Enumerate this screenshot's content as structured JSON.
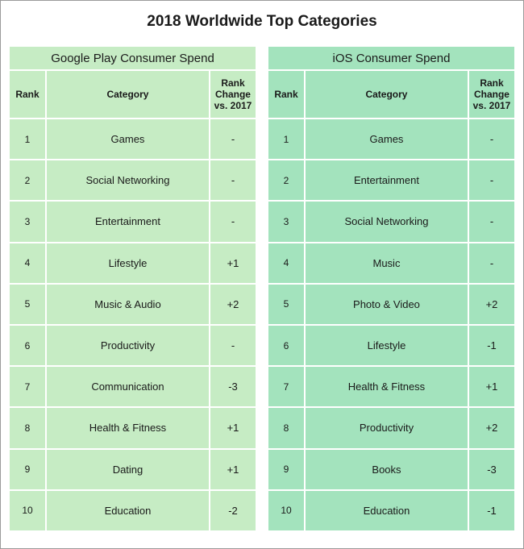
{
  "title": "2018 Worldwide Top Categories",
  "chart_data": {
    "type": "table",
    "columns": [
      "Rank",
      "Category",
      "Rank Change vs. 2017"
    ],
    "tables": [
      {
        "name": "Google Play Consumer Spend",
        "rows": [
          {
            "rank": "1",
            "category": "Games",
            "change": "-"
          },
          {
            "rank": "2",
            "category": "Social Networking",
            "change": "-"
          },
          {
            "rank": "3",
            "category": "Entertainment",
            "change": "-"
          },
          {
            "rank": "4",
            "category": "Lifestyle",
            "change": "+1"
          },
          {
            "rank": "5",
            "category": "Music & Audio",
            "change": "+2"
          },
          {
            "rank": "6",
            "category": "Productivity",
            "change": "-"
          },
          {
            "rank": "7",
            "category": "Communication",
            "change": "-3"
          },
          {
            "rank": "8",
            "category": "Health & Fitness",
            "change": "+1"
          },
          {
            "rank": "9",
            "category": "Dating",
            "change": "+1"
          },
          {
            "rank": "10",
            "category": "Education",
            "change": "-2"
          }
        ]
      },
      {
        "name": "iOS Consumer Spend",
        "rows": [
          {
            "rank": "1",
            "category": "Games",
            "change": "-"
          },
          {
            "rank": "2",
            "category": "Entertainment",
            "change": "-"
          },
          {
            "rank": "3",
            "category": "Social Networking",
            "change": "-"
          },
          {
            "rank": "4",
            "category": "Music",
            "change": "-"
          },
          {
            "rank": "5",
            "category": "Photo & Video",
            "change": "+2"
          },
          {
            "rank": "6",
            "category": "Lifestyle",
            "change": "-1"
          },
          {
            "rank": "7",
            "category": "Health & Fitness",
            "change": "+1"
          },
          {
            "rank": "8",
            "category": "Productivity",
            "change": "+2"
          },
          {
            "rank": "9",
            "category": "Books",
            "change": "-3"
          },
          {
            "rank": "10",
            "category": "Education",
            "change": "-1"
          }
        ]
      }
    ]
  },
  "colors": {
    "google_play_panel": "#c6ecc4",
    "ios_panel": "#a3e3bd"
  }
}
